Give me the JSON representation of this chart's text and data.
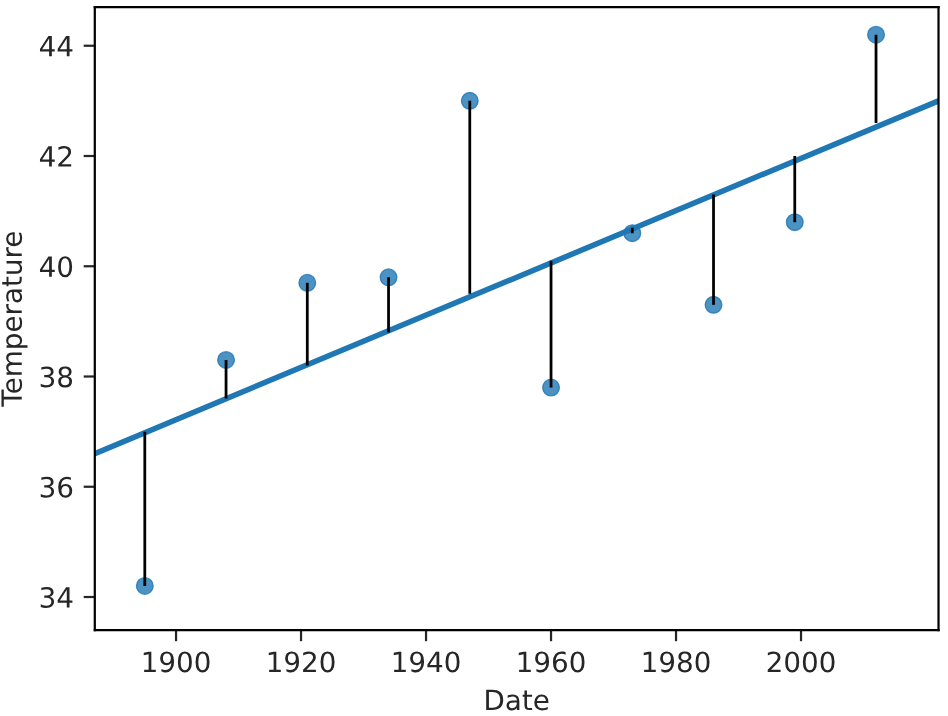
{
  "chart_data": {
    "type": "scatter",
    "xlabel": "Date",
    "ylabel": "Temperature",
    "xlim": [
      1887,
      2022
    ],
    "ylim": [
      33.4,
      44.7
    ],
    "xticks": [
      1900,
      1920,
      1940,
      1960,
      1980,
      2000
    ],
    "yticks": [
      34,
      36,
      38,
      40,
      42,
      44
    ],
    "grid": false,
    "legend": false,
    "series": [
      {
        "color": "#1f77b4",
        "marker": "circle",
        "x": [
          1895,
          1908,
          1921,
          1934,
          1947,
          1960,
          1973,
          1986,
          1999,
          2012
        ],
        "values": [
          34.2,
          38.3,
          39.7,
          39.8,
          43.0,
          37.8,
          40.6,
          39.3,
          40.8,
          44.2
        ],
        "errors": [
          [
            34.2,
            37.0
          ],
          [
            37.6,
            38.3
          ],
          [
            38.2,
            39.7
          ],
          [
            38.8,
            39.8
          ],
          [
            39.5,
            43.0
          ],
          [
            37.8,
            40.1
          ],
          [
            40.6,
            40.7
          ],
          [
            39.3,
            41.3
          ],
          [
            40.8,
            42.0
          ],
          [
            42.6,
            44.2
          ]
        ]
      },
      {
        "type": "line",
        "color": "#1f77b4",
        "marker": "none",
        "x": [
          1887,
          2022
        ],
        "values": [
          36.6,
          43.0
        ]
      }
    ]
  }
}
